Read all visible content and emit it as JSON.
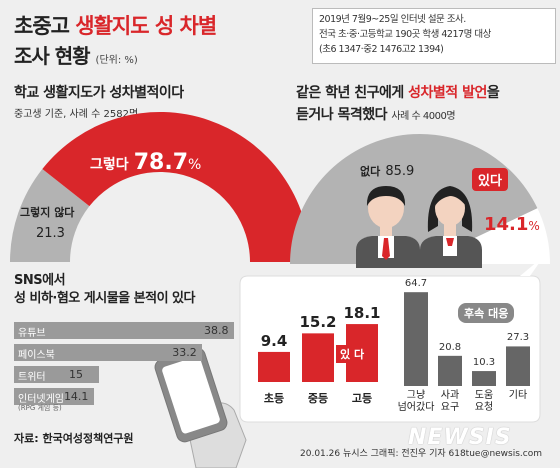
{
  "header": {
    "title_line1_pre": "초중고 ",
    "title_line1_red": "생활지도 성 차별",
    "title_line2": "조사 현황",
    "unit": "(단위: %)"
  },
  "survey_info": {
    "line1": "2019년 7월9~25일 인터넷 설문 조사.",
    "line2": "전국 초·중·고등학교 190곳 학생 4217명 대상",
    "line3": "(초6 1347·중2 1476고2 1394)"
  },
  "section1": {
    "title": "학교 생활지도가 성차별적이다",
    "subtitle": "중고생 기준, 사례 수 2582명",
    "yes_label": "그렇다",
    "yes_value": "78.7",
    "pct": "%",
    "no_label": "그렇지 않다",
    "no_value": "21.3"
  },
  "section2": {
    "title_pre": "같은 학년 친구",
    "title_mid": "에게 ",
    "title_red": "성차별적 발언",
    "title_post": "을",
    "title_line2": "듣거나 목격했다",
    "subtitle": "사례 수 4000명",
    "no_label": "없다",
    "no_value": "85.9",
    "yes_label": "있다",
    "yes_value": "14.1",
    "pct": "%"
  },
  "sns": {
    "title_line1": "SNS에서",
    "title_line2": "성 비하·혐오 게시물을 본적이 있다",
    "items": [
      {
        "label": "유튜브",
        "value": "38.8"
      },
      {
        "label": "페이스북",
        "value": "33.2"
      },
      {
        "label": "트위터",
        "value": "15"
      },
      {
        "label": "인터넷게임",
        "value": "14.1",
        "note": "(RPG 게임 등)"
      }
    ]
  },
  "grade_bars": {
    "exists_label": "있 다",
    "items": [
      {
        "label": "초등",
        "value": "9.4"
      },
      {
        "label": "중등",
        "value": "15.2"
      },
      {
        "label": "고등",
        "value": "18.1"
      }
    ]
  },
  "response_bars": {
    "legend": "후속 대응",
    "items": [
      {
        "label1": "그냥",
        "label2": "넘어갔다",
        "value": "64.7"
      },
      {
        "label1": "사과",
        "label2": "요구",
        "value": "20.8"
      },
      {
        "label1": "도움",
        "label2": "요청",
        "value": "10.3"
      },
      {
        "label1": "기타",
        "label2": "",
        "value": "27.3"
      }
    ]
  },
  "footer": {
    "source": "자료: 한국여성정책연구원",
    "credit": "20.01.26  뉴시스 그래픽: 전진우 기자  618tue@newsis.com",
    "logo": "NEWSIS"
  },
  "colors": {
    "red": "#d9262a",
    "grey": "#9a9a9a",
    "light_grey": "#b3b3b3",
    "dark_grey": "#666666"
  },
  "chart_data": [
    {
      "type": "pie",
      "title": "학교 생활지도가 성차별적이다",
      "categories": [
        "그렇다",
        "그렇지 않다"
      ],
      "values": [
        78.7,
        21.3
      ]
    },
    {
      "type": "pie",
      "title": "같은 학년 친구에게 성차별적 발언을 듣거나 목격했다",
      "categories": [
        "없다",
        "있다"
      ],
      "values": [
        85.9,
        14.1
      ]
    },
    {
      "type": "bar",
      "title": "SNS에서 성 비하·혐오 게시물을 본적이 있다",
      "categories": [
        "유튜브",
        "페이스북",
        "트위터",
        "인터넷게임"
      ],
      "values": [
        38.8,
        33.2,
        15,
        14.1
      ]
    },
    {
      "type": "bar",
      "categories": [
        "초등",
        "중등",
        "고등"
      ],
      "values": [
        9.4,
        15.2,
        18.1
      ]
    },
    {
      "type": "bar",
      "title": "후속 대응",
      "categories": [
        "그냥 넘어갔다",
        "사과 요구",
        "도움 요청",
        "기타"
      ],
      "values": [
        64.7,
        20.8,
        10.3,
        27.3
      ]
    }
  ]
}
